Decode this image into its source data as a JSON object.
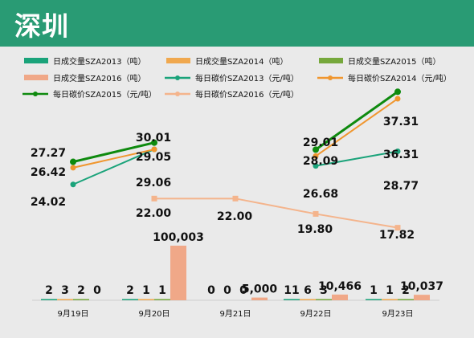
{
  "title": "深圳",
  "chart_data": {
    "type": "bar+line",
    "categories": [
      "9月19日",
      "9月20日",
      "9月21日",
      "9月22日",
      "9月23日"
    ],
    "bar_series": [
      {
        "name": "日成交量SZA2013（吨）",
        "color": "#1aa37a",
        "values": [
          2,
          2,
          0,
          11,
          1
        ]
      },
      {
        "name": "日成交量SZA2014（吨）",
        "color": "#f0a84e",
        "values": [
          3,
          1,
          0,
          6,
          1
        ]
      },
      {
        "name": "日成交量SZA2015（吨）",
        "color": "#76a83c",
        "values": [
          2,
          1,
          0,
          3,
          2
        ]
      },
      {
        "name": "日成交量SZA2016（吨）",
        "color": "#f0a888",
        "values": [
          0,
          100003,
          5000,
          10466,
          10037
        ]
      }
    ],
    "bar_labels": [
      [
        "2",
        "2",
        "0",
        "11",
        "1"
      ],
      [
        "3",
        "1",
        "0",
        "6",
        "1"
      ],
      [
        "2",
        "1",
        "0",
        "3",
        "2"
      ],
      [
        "0",
        "100,003",
        "5,000",
        "10,466",
        "10,037"
      ]
    ],
    "line_series": [
      {
        "name": "每日碳价SZA2013（元/吨）",
        "color": "#1aa37a",
        "values": [
          24.02,
          29.06,
          null,
          26.68,
          28.77
        ]
      },
      {
        "name": "每日碳价SZA2014（元/吨）",
        "color": "#f0962e",
        "values": [
          26.42,
          29.05,
          null,
          28.09,
          36.31
        ]
      },
      {
        "name": "每日碳价SZA2015（元/吨）",
        "color": "#0e8a0e",
        "values": [
          27.27,
          30.01,
          null,
          29.01,
          37.31
        ]
      },
      {
        "name": "每日碳价SZA2016（元/吨）",
        "color": "#f4b48c",
        "values": [
          null,
          22.0,
          22.0,
          19.8,
          17.82
        ]
      }
    ],
    "line_labels": [
      [
        "24.02",
        "29.06",
        "",
        "26.68",
        "28.77"
      ],
      [
        "26.42",
        "29.05",
        "",
        "28.09",
        "36.31"
      ],
      [
        "27.27",
        "30.01",
        "",
        "29.01",
        "37.31"
      ],
      [
        "",
        "22.00",
        "22.00",
        "19.80",
        "17.82"
      ]
    ],
    "legend_position": "top",
    "grid": false
  }
}
